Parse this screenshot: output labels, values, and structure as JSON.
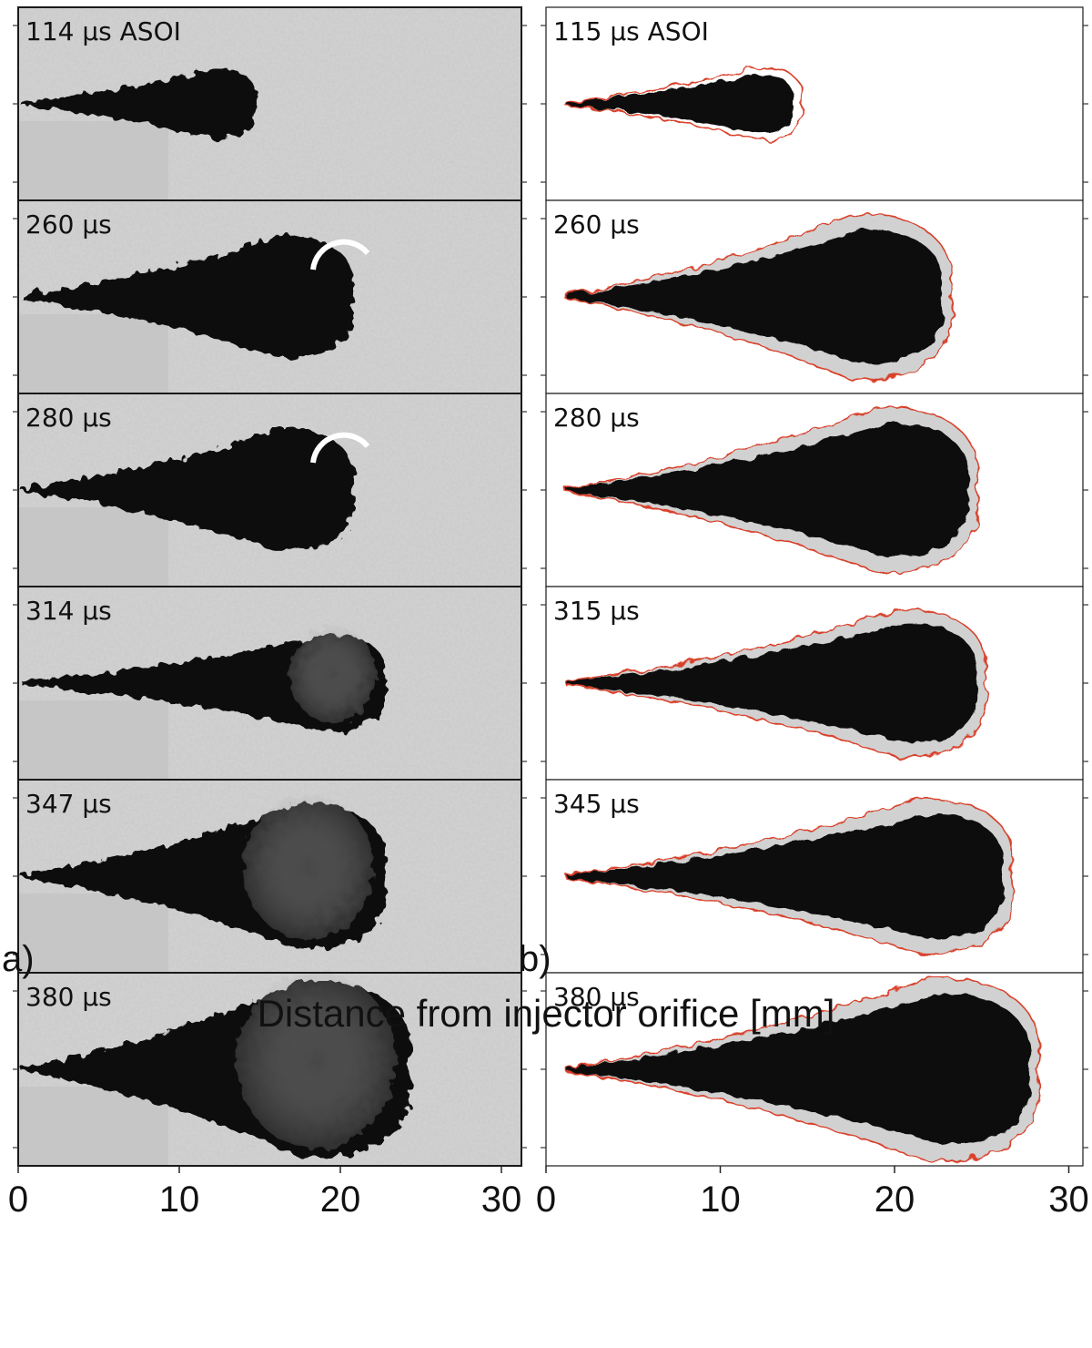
{
  "panel_a": {
    "label": "a)",
    "frames": [
      {
        "time": "114 µs ASOI"
      },
      {
        "time": "260 µs"
      },
      {
        "time": "280 µs"
      },
      {
        "time": "314 µs"
      },
      {
        "time": "347 µs"
      },
      {
        "time": "380 µs"
      }
    ],
    "ticks": [
      "0",
      "10",
      "20",
      "30"
    ]
  },
  "panel_b": {
    "label": "b)",
    "frames": [
      {
        "time": "115 μs ASOI"
      },
      {
        "time": "260 μs"
      },
      {
        "time": "280 μs"
      },
      {
        "time": "315 μs"
      },
      {
        "time": "345 μs"
      },
      {
        "time": "380 μs"
      }
    ],
    "ticks": [
      "0",
      "10",
      "20",
      "30"
    ]
  },
  "x_axis_label": "Distance from injector orifice [mm]",
  "colors": {
    "schlieren_background": "#c9c9c9",
    "spray": "#111111",
    "contour": "#d9412b",
    "frame_border": "#1a1a1a"
  },
  "spray_penetration_mm": {
    "panel_a": [
      14.5,
      20.5,
      20.5,
      22.5,
      22.5,
      24
    ],
    "panel_b": [
      14.5,
      23,
      24.5,
      25,
      26.5,
      28
    ]
  },
  "spray_max_halfwidth_mm": {
    "panel_a": [
      2.2,
      3.8,
      3.8,
      3.0,
      4.5,
      5.5
    ],
    "panel_b": [
      2.0,
      4.5,
      4.5,
      4.0,
      4.2,
      5.0
    ]
  }
}
